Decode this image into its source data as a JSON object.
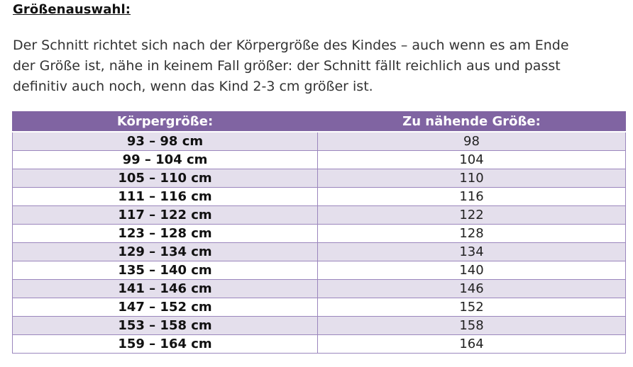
{
  "heading": "Größenauswahl:",
  "intro": {
    "line1": "Der Schnitt richtet sich nach der Körpergröße des Kindes – auch wenn es am Ende",
    "line2": "der Größe ist, nähe in keinem Fall größer: der Schnitt fällt reichlich aus und passt",
    "line3": "definitiv auch noch, wenn das Kind 2-3 cm größer ist."
  },
  "colors": {
    "header_bg": "#8064a2",
    "band_bg": "#e4dfec",
    "border": "#9b86bd"
  },
  "table": {
    "headers": [
      "Körpergröße:",
      "Zu nähende Größe:"
    ],
    "rows": [
      {
        "height": "93 – 98 cm",
        "size": "98"
      },
      {
        "height": "99 – 104 cm",
        "size": "104"
      },
      {
        "height": "105 – 110 cm",
        "size": "110"
      },
      {
        "height": "111 – 116 cm",
        "size": "116"
      },
      {
        "height": "117 – 122 cm",
        "size": "122"
      },
      {
        "height": "123 – 128 cm",
        "size": "128"
      },
      {
        "height": "129 – 134 cm",
        "size": "134"
      },
      {
        "height": "135 – 140 cm",
        "size": "140"
      },
      {
        "height": "141 – 146 cm",
        "size": "146"
      },
      {
        "height": "147 – 152 cm",
        "size": "152"
      },
      {
        "height": "153 – 158 cm",
        "size": "158"
      },
      {
        "height": "159 – 164 cm",
        "size": "164"
      }
    ]
  }
}
